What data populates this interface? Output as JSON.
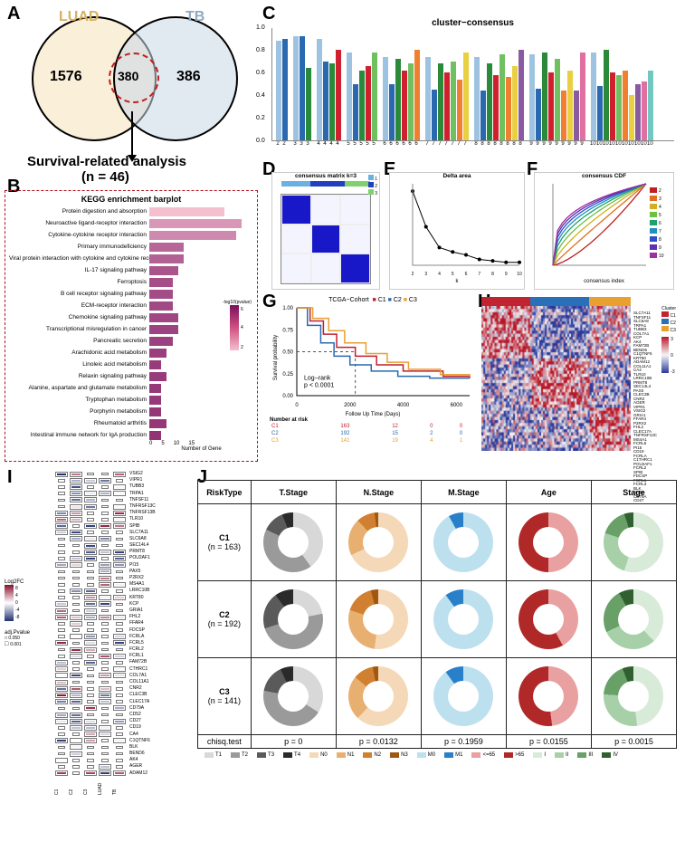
{
  "panel_labels": {
    "A": "A",
    "B": "B",
    "C": "C",
    "D": "D",
    "E": "E",
    "F": "F",
    "G": "G",
    "H": "H",
    "I": "I",
    "J": "J"
  },
  "A": {
    "left_label": "LUAD",
    "right_label": "TB",
    "left_n": "1576",
    "mid_n": "380",
    "right_n": "386",
    "left_color": "#f4e3bf",
    "right_color": "#cfd9e4",
    "dash_color": "#c02020"
  },
  "survival_label": "Survival-related analysis",
  "survival_n": "(n = 46)",
  "B": {
    "title": "KEGG enrichment barplot",
    "xlabel": "Number of Gene",
    "xticks": [
      "0",
      "5",
      "10",
      "15"
    ],
    "legend_title": "-log10(pvalue)",
    "legend_ticks": [
      "6",
      "4",
      "2"
    ],
    "color_high": "#7a1060",
    "color_low": "#f4c0d0",
    "pathways": [
      {
        "name": "Protein digestion and absorption",
        "n": 13,
        "logp": 6.5
      },
      {
        "name": "Neuroactive ligand-receptor interaction",
        "n": 16,
        "logp": 5.0
      },
      {
        "name": "Cytokine-cytokine receptor interaction",
        "n": 15,
        "logp": 4.5
      },
      {
        "name": "Primary immunodeficiency",
        "n": 6,
        "logp": 3.2
      },
      {
        "name": "Viral protein interaction with cytokine and cytokine receptor",
        "n": 6,
        "logp": 3.0
      },
      {
        "name": "IL-17 signaling pathway",
        "n": 5,
        "logp": 2.5
      },
      {
        "name": "Ferroptosis",
        "n": 4,
        "logp": 2.3
      },
      {
        "name": "B cell receptor signaling pathway",
        "n": 4,
        "logp": 2.2
      },
      {
        "name": "ECM-receptor interaction",
        "n": 4,
        "logp": 2.1
      },
      {
        "name": "Chemokine signaling pathway",
        "n": 5,
        "logp": 2.0
      },
      {
        "name": "Transcriptional misregulation in cancer",
        "n": 5,
        "logp": 1.9
      },
      {
        "name": "Pancreatic secretion",
        "n": 4,
        "logp": 1.8
      },
      {
        "name": "Arachidonic acid metabolism",
        "n": 3,
        "logp": 1.7
      },
      {
        "name": "Linoleic acid metabolism",
        "n": 2,
        "logp": 1.6
      },
      {
        "name": "Relaxin signaling pathway",
        "n": 3,
        "logp": 1.6
      },
      {
        "name": "Alanine, aspartate and glutamate metabolism",
        "n": 2,
        "logp": 1.5
      },
      {
        "name": "Tryptophan metabolism",
        "n": 2,
        "logp": 1.5
      },
      {
        "name": "Porphyrin metabolism",
        "n": 2,
        "logp": 1.4
      },
      {
        "name": "Rheumatoid arthritis",
        "n": 3,
        "logp": 1.4
      },
      {
        "name": "Intestinal immune network for IgA production",
        "n": 2,
        "logp": 1.3
      }
    ],
    "xmax": 18
  },
  "C": {
    "title": "cluster−consensus",
    "ylim": [
      0,
      1.0
    ],
    "yticks": [
      "0.0",
      "0.2",
      "0.4",
      "0.6",
      "0.8",
      "1.0"
    ],
    "palette": [
      "#9ec3e0",
      "#2a69b0",
      "#2a8a3a",
      "#d02030",
      "#70c060",
      "#f08030",
      "#e8d040",
      "#8a5aa0",
      "#e070a0",
      "#70c8c0"
    ],
    "groups": [
      {
        "k": 2,
        "vals": [
          0.88,
          0.9
        ]
      },
      {
        "k": 3,
        "vals": [
          0.92,
          0.92,
          0.64
        ]
      },
      {
        "k": 4,
        "vals": [
          0.9,
          0.7,
          0.68,
          0.8
        ]
      },
      {
        "k": 5,
        "vals": [
          0.78,
          0.5,
          0.62,
          0.66,
          0.78
        ]
      },
      {
        "k": 6,
        "vals": [
          0.74,
          0.5,
          0.72,
          0.62,
          0.68,
          0.8
        ]
      },
      {
        "k": 7,
        "vals": [
          0.74,
          0.45,
          0.68,
          0.6,
          0.7,
          0.54,
          0.78
        ]
      },
      {
        "k": 8,
        "vals": [
          0.74,
          0.44,
          0.68,
          0.58,
          0.76,
          0.56,
          0.66,
          0.8
        ]
      },
      {
        "k": 9,
        "vals": [
          0.76,
          0.46,
          0.78,
          0.6,
          0.72,
          0.44,
          0.62,
          0.44,
          0.78
        ]
      },
      {
        "k": 10,
        "vals": [
          0.78,
          0.48,
          0.8,
          0.6,
          0.58,
          0.62,
          0.4,
          0.5,
          0.52,
          0.62
        ]
      }
    ]
  },
  "D": {
    "title": "consensus matrix k=3",
    "colors": {
      "1": "#6ab0e0",
      "2": "#2040c0",
      "3": "#80d070"
    },
    "matrix_color": "#1818c8",
    "bg": "#ffffff"
  },
  "E": {
    "title": "Delta area",
    "xlabel": "k",
    "ylabel": "relative change in area under CDF curve",
    "x": [
      2,
      3,
      4,
      5,
      6,
      7,
      8,
      9,
      10
    ],
    "y": [
      0.5,
      0.26,
      0.12,
      0.09,
      0.07,
      0.04,
      0.03,
      0.02,
      0.02
    ],
    "line_color": "#000"
  },
  "F": {
    "title": "consensus CDF",
    "xlabel": "consensus index",
    "ylabel": "CDF",
    "palette": [
      "#c02020",
      "#e07020",
      "#d0b020",
      "#70c040",
      "#20a070",
      "#2090c0",
      "#3050c0",
      "#6030b0",
      "#a030a0"
    ],
    "legend": [
      "2",
      "3",
      "4",
      "5",
      "6",
      "7",
      "8",
      "9",
      "10"
    ]
  },
  "G": {
    "cohort_label": "TCGA−Cohort",
    "groups": [
      {
        "name": "C1",
        "color": "#c02030"
      },
      {
        "name": "C2",
        "color": "#2a69b0"
      },
      {
        "name": "C3",
        "color": "#e8a030"
      }
    ],
    "xlabel": "Follow Up Time (Days)",
    "ylabel": "Survival probability",
    "logrank": "Log−rank",
    "pval": "p < 0.0001",
    "xticks": [
      "0",
      "2000",
      "4000",
      "6000"
    ],
    "risk_title": "Number at risk",
    "risk": [
      {
        "name": "C1",
        "vals": [
          "163",
          "12",
          "0",
          "0"
        ]
      },
      {
        "name": "C2",
        "vals": [
          "192",
          "15",
          "2",
          "0"
        ]
      },
      {
        "name": "C3",
        "vals": [
          "141",
          "19",
          "4",
          "1"
        ]
      }
    ]
  },
  "H": {
    "cluster_colors": {
      "C1": "#c02430",
      "C2": "#2a70b8",
      "C3": "#e8a030"
    },
    "scale": {
      "min": -3,
      "max": 3,
      "low": "#2a3a9a",
      "mid": "#f5f5f5",
      "high": "#b81828"
    },
    "legend_title": "Cluster",
    "proportions": {
      "C1": 0.33,
      "C2": 0.39,
      "C3": 0.28
    },
    "genes": [
      "SLC7A11",
      "TNFSF11",
      "SLC6A8",
      "TRPA1",
      "TUBB3",
      "COL7A1",
      "KCP",
      "AK4",
      "FAM72B",
      "BEND6",
      "C1QTNF6",
      "KRT80",
      "ADAM12",
      "COL11A1",
      "CA4",
      "TLR10",
      "LRRC10B",
      "PRMT8",
      "SEC14L4",
      "PAX5",
      "CLEC3B",
      "CNR2",
      "AGER",
      "VIPR1",
      "VSIG2",
      "GRIA1",
      "FFAR4",
      "P2RX2",
      "FHL2",
      "CLEC17A",
      "TNFRSF13C",
      "MS4A1",
      "FCRL5",
      "PI15",
      "CD19",
      "FCRLA",
      "C1THRC1",
      "POU2AF1",
      "FCRL2",
      "SPIB",
      "FDCSP",
      "FCRL1",
      "FCRL3",
      "BLK",
      "CD52",
      "CD79A",
      "CD27"
    ]
  },
  "I": {
    "columns": [
      "C1",
      "C2",
      "C3",
      "LUAD",
      "TB"
    ],
    "log2fc_label": "Log2FC",
    "log2fc_ticks": [
      "8",
      "4",
      "0",
      "-4",
      "-8"
    ],
    "adjp_label": "adj.Pvalue",
    "adjp_levels": [
      "0.050",
      "0.001"
    ],
    "color_high": "#8a1030",
    "color_low": "#203070",
    "genes": [
      "VSIG2",
      "VIPR1",
      "TUBB3",
      "TRPA1",
      "TNFSF11",
      "TNFRSF13C",
      "TNFRSF13B",
      "TLR10",
      "SPIB",
      "SLC7A11",
      "SLC6A8",
      "SEC14L4",
      "PRMT8",
      "POU2AF1",
      "PI15",
      "PAX5",
      "P2RX2",
      "MS4A1",
      "LRRC10B",
      "KRT80",
      "KCP",
      "GRIA1",
      "FHL2",
      "FFAR4",
      "FDCSP",
      "FCRLA",
      "FCRL5",
      "FCRL2",
      "FCRL1",
      "FAM72B",
      "CTHRC1",
      "COL7A1",
      "COL11A1",
      "CNR2",
      "CLEC3B",
      "CLEC17A",
      "CD79A",
      "CD52",
      "CD27",
      "CD19",
      "CA4",
      "C1QTNF6",
      "BLK",
      "BEND6",
      "AK4",
      "AGER",
      "ADAM12"
    ]
  },
  "J": {
    "headers": [
      "RiskType",
      "T.Stage",
      "N.Stage",
      "M.Stage",
      "Age",
      "Stage"
    ],
    "rows": [
      {
        "label": "C1",
        "n": "(n = 163)"
      },
      {
        "label": "C2",
        "n": "(n = 192)"
      },
      {
        "label": "C3",
        "n": "(n = 141)"
      }
    ],
    "chisq_label": "chisq.test",
    "pvals": [
      "p = 0",
      "p = 0.0132",
      "p = 0.1959",
      "p = 0.0155",
      "p = 0.0015"
    ],
    "palettes": {
      "T": {
        "T1": "#d8d8d8",
        "T2": "#9a9a9a",
        "T3": "#5a5a5a",
        "T4": "#2a2a2a"
      },
      "N": {
        "N0": "#f4d8b8",
        "N1": "#e8b070",
        "N2": "#d08030",
        "N3": "#a05810"
      },
      "M": {
        "M0": "#bde0ef",
        "M1": "#2a80c8"
      },
      "Age": {
        "<=65": "#e8a0a0",
        ">65": "#b02828"
      },
      "Stage": {
        "I": "#d8ead8",
        "II": "#a8d0a8",
        "III": "#68a068",
        "IV": "#306030"
      }
    },
    "donuts": {
      "C1": {
        "T": [
          0.4,
          0.42,
          0.12,
          0.06
        ],
        "N": [
          0.68,
          0.2,
          0.1,
          0.02
        ],
        "M": [
          0.92,
          0.08
        ],
        "Age": [
          0.5,
          0.5
        ],
        "Stage": [
          0.55,
          0.25,
          0.15,
          0.05
        ]
      },
      "C2": {
        "T": [
          0.22,
          0.48,
          0.2,
          0.1
        ],
        "N": [
          0.52,
          0.28,
          0.16,
          0.04
        ],
        "M": [
          0.9,
          0.1
        ],
        "Age": [
          0.42,
          0.58
        ],
        "Stage": [
          0.38,
          0.3,
          0.24,
          0.08
        ]
      },
      "C3": {
        "T": [
          0.34,
          0.44,
          0.15,
          0.07
        ],
        "N": [
          0.62,
          0.24,
          0.11,
          0.03
        ],
        "M": [
          0.9,
          0.1
        ],
        "Age": [
          0.48,
          0.52
        ],
        "Stage": [
          0.48,
          0.28,
          0.18,
          0.06
        ]
      }
    },
    "legend_order": [
      [
        "T1",
        "T2",
        "T3",
        "T4"
      ],
      [
        "N0",
        "N1",
        "N2",
        "N3"
      ],
      [
        "M0",
        "M1"
      ],
      [
        "<=65",
        ">65"
      ],
      [
        "I",
        "II",
        "III",
        "IV"
      ]
    ]
  }
}
